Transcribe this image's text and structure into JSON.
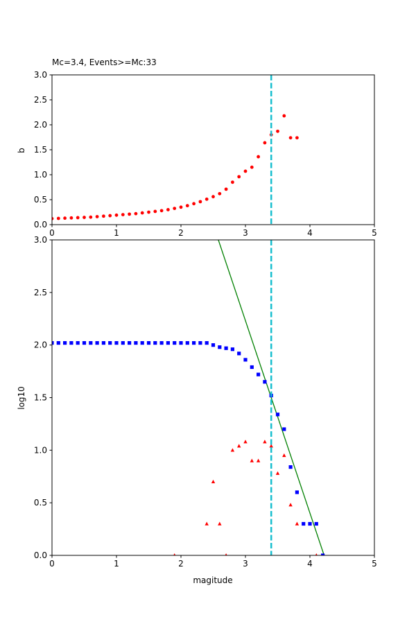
{
  "chart_data": [
    {
      "type": "scatter",
      "title": "Mc=3.4, Events>=Mc:33",
      "xlabel": "",
      "ylabel": "b",
      "xlim": [
        0,
        5
      ],
      "ylim": [
        0,
        3
      ],
      "xticks": [
        "0",
        "1",
        "2",
        "3",
        "4",
        "5"
      ],
      "yticks": [
        "0.0",
        "0.5",
        "1.0",
        "1.5",
        "2.0",
        "2.5",
        "3.0"
      ],
      "grid": false,
      "legend": "none",
      "mc_line_x": 3.4,
      "series": [
        {
          "marker": "circle",
          "color": "#ff0000",
          "x": [
            0.0,
            0.1,
            0.2,
            0.3,
            0.4,
            0.5,
            0.6,
            0.7,
            0.8,
            0.9,
            1.0,
            1.1,
            1.2,
            1.3,
            1.4,
            1.5,
            1.6,
            1.7,
            1.8,
            1.9,
            2.0,
            2.1,
            2.2,
            2.3,
            2.4,
            2.5,
            2.6,
            2.7,
            2.8,
            2.9,
            3.0,
            3.1,
            3.2,
            3.3,
            3.4,
            3.5,
            3.6,
            3.7,
            3.8
          ],
          "y": [
            0.12,
            0.125,
            0.13,
            0.135,
            0.14,
            0.145,
            0.15,
            0.16,
            0.17,
            0.18,
            0.19,
            0.2,
            0.21,
            0.22,
            0.235,
            0.25,
            0.265,
            0.28,
            0.3,
            0.325,
            0.35,
            0.38,
            0.42,
            0.46,
            0.51,
            0.56,
            0.62,
            0.71,
            0.85,
            0.96,
            1.07,
            1.15,
            1.36,
            1.64,
            1.8,
            1.87,
            2.18,
            1.74,
            1.74
          ]
        }
      ]
    },
    {
      "type": "scatter",
      "title": "",
      "xlabel": "magitude",
      "ylabel": "log10",
      "xlim": [
        0,
        5
      ],
      "ylim": [
        0,
        3
      ],
      "xticks": [
        "0",
        "1",
        "2",
        "3",
        "4",
        "5"
      ],
      "yticks": [
        "0.0",
        "0.5",
        "1.0",
        "1.5",
        "2.0",
        "2.5",
        "3.0"
      ],
      "grid": false,
      "legend": "none",
      "mc_line_x": 3.4,
      "fit_line": {
        "color": "#008000",
        "x": [
          2.58,
          4.22
        ],
        "y": [
          3.0,
          0.0
        ]
      },
      "series": [
        {
          "marker": "square",
          "color": "#0000ff",
          "x": [
            0.0,
            0.1,
            0.2,
            0.3,
            0.4,
            0.5,
            0.6,
            0.7,
            0.8,
            0.9,
            1.0,
            1.1,
            1.2,
            1.3,
            1.4,
            1.5,
            1.6,
            1.7,
            1.8,
            1.9,
            2.0,
            2.1,
            2.2,
            2.3,
            2.4,
            2.5,
            2.6,
            2.7,
            2.8,
            2.9,
            3.0,
            3.1,
            3.2,
            3.3,
            3.4,
            3.5,
            3.6,
            3.7,
            3.8,
            3.9,
            4.0,
            4.1,
            4.2
          ],
          "y": [
            2.02,
            2.02,
            2.02,
            2.02,
            2.02,
            2.02,
            2.02,
            2.02,
            2.02,
            2.02,
            2.02,
            2.02,
            2.02,
            2.02,
            2.02,
            2.02,
            2.02,
            2.02,
            2.02,
            2.02,
            2.02,
            2.02,
            2.02,
            2.02,
            2.02,
            2.0,
            1.98,
            1.97,
            1.96,
            1.92,
            1.86,
            1.79,
            1.72,
            1.65,
            1.52,
            1.34,
            1.2,
            0.84,
            0.6,
            0.3,
            0.3,
            0.3,
            0.0
          ]
        },
        {
          "marker": "triangle",
          "color": "#ff0000",
          "x": [
            1.9,
            2.4,
            2.5,
            2.6,
            2.7,
            2.8,
            2.9,
            3.0,
            3.1,
            3.2,
            3.3,
            3.4,
            3.5,
            3.6,
            3.7,
            3.8,
            4.1
          ],
          "y": [
            0.0,
            0.3,
            0.7,
            0.3,
            0.0,
            1.0,
            1.04,
            1.08,
            0.9,
            0.9,
            1.08,
            1.04,
            0.78,
            0.95,
            0.48,
            0.3,
            0.0
          ]
        }
      ]
    }
  ]
}
